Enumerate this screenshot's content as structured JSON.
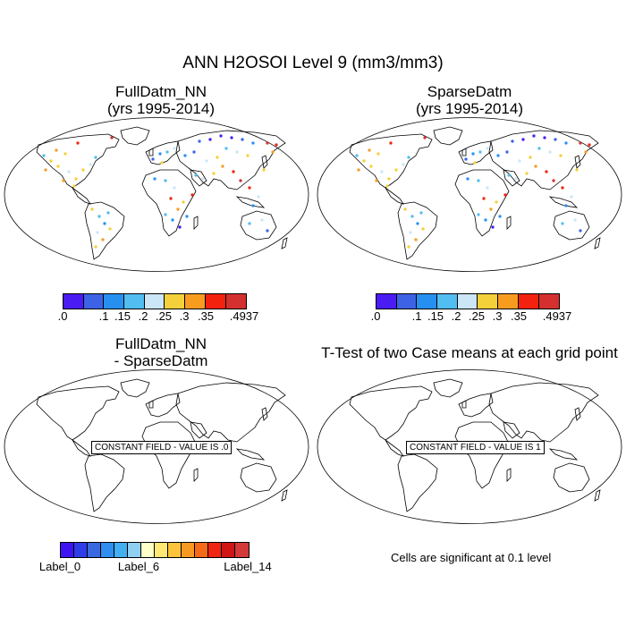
{
  "figure": {
    "main_title": "ANN H2OSOI Level 9 (mm3/mm3)"
  },
  "panels": {
    "p1": {
      "title_line1": "FullDatm_NN",
      "title_line2": "(yrs 1995-2014)"
    },
    "p2": {
      "title_line1": "SparseDatm",
      "title_line2": "(yrs 1995-2014)"
    },
    "p3": {
      "title_line1": "FullDatm_NN",
      "title_line2": "- SparseDatm",
      "constant_label": "CONSTANT FIELD - VALUE IS .0"
    },
    "p4": {
      "title_line1": "T-Test of two Case means at each grid point",
      "constant_label": "CONSTANT FIELD - VALUE IS 1"
    }
  },
  "colorbar_top": {
    "colors": [
      "#4a1bf2",
      "#3d62e6",
      "#2690f0",
      "#52bdf0",
      "#cbe6f6",
      "#f4d03a",
      "#f89c20",
      "#f2220e",
      "#d43030"
    ],
    "labels": [
      ".0",
      ".1",
      ".15",
      ".2",
      ".25",
      ".3",
      ".35",
      ".4937"
    ]
  },
  "colorbar_bottom": {
    "colors": [
      "#3f14f2",
      "#2f3de8",
      "#3a68e0",
      "#2f8ef0",
      "#43aef0",
      "#8fd0f0",
      "#ffffc8",
      "#ffe875",
      "#fcc43a",
      "#f89a22",
      "#f56a18",
      "#ee2612",
      "#d01515",
      "#d43a3a"
    ],
    "labels": [
      "Label_0",
      "Label_6",
      "Label_14"
    ]
  },
  "significance_note": "Cells are significant at 0.1 level"
}
